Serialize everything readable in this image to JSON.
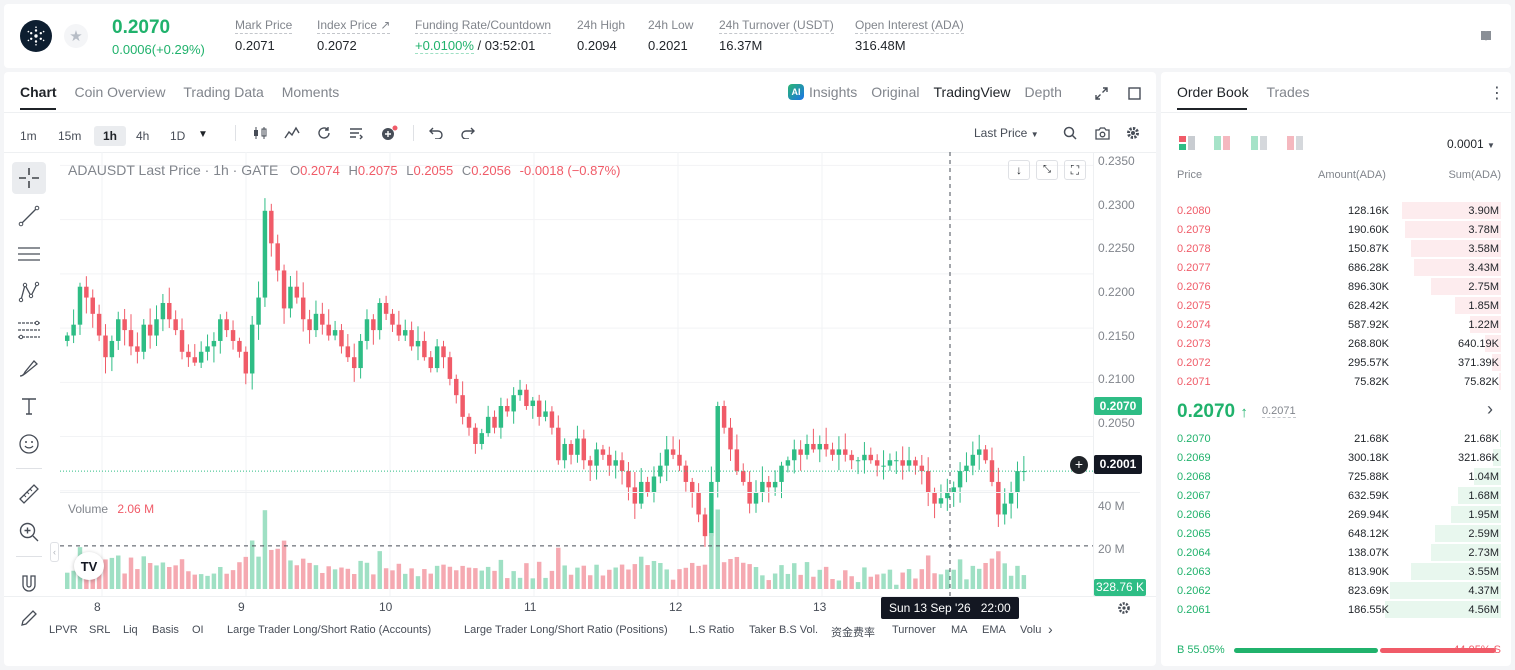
{
  "ticker": {
    "price": "0.2070",
    "change": "0.0006(+0.29%)",
    "stats": [
      {
        "label": "Mark Price",
        "value": "0.2071"
      },
      {
        "label": "Index Price ↗",
        "value": "0.2072"
      },
      {
        "label": "Funding Rate/Countdown",
        "value_green": "+0.0100%",
        "value": " / 03:52:01"
      },
      {
        "label": "24h High",
        "value": "0.2094"
      },
      {
        "label": "24h Low",
        "value": "0.2021"
      },
      {
        "label": "24h Turnover (USDT)",
        "value": "16.37M"
      },
      {
        "label": "Open Interest (ADA)",
        "value": "316.48M"
      }
    ]
  },
  "chart_tabs": [
    "Chart",
    "Coin Overview",
    "Trading Data",
    "Moments"
  ],
  "view_tabs": {
    "insights": "Insights",
    "original": "Original",
    "tradingview": "TradingView",
    "depth": "Depth"
  },
  "timeframes": [
    "1m",
    "15m",
    "1h",
    "4h",
    "1D"
  ],
  "price_type": "Last Price",
  "ohlc": {
    "symbol": "ADAUSDT Last Price · 1h · GATE",
    "o_label": "O",
    "o": "0.2074",
    "h_label": "H",
    "h": "0.2075",
    "l_label": "L",
    "l": "0.2055",
    "c_label": "C",
    "c": "0.2056",
    "chg": "-0.0018 (−0.87%)"
  },
  "volume": {
    "label": "Volume",
    "value": "2.06 M",
    "last_tag": "328.76 K"
  },
  "price_axis": [
    "0.2350",
    "0.2300",
    "0.2250",
    "0.2200",
    "0.2150",
    "0.2100",
    "0.2050"
  ],
  "volume_axis": [
    "40 M",
    "20 M"
  ],
  "current_price_tag": "0.2070",
  "crosshair_price_tag": "0.2001",
  "crosshair_time_tag": "Sun 13 Sep '26   22:00",
  "x_axis": [
    "8",
    "9",
    "10",
    "11",
    "12",
    "13"
  ],
  "indicators": [
    "LPVR",
    "SRL",
    "Liq",
    "Basis",
    "OI",
    "Large Trader Long/Short Ratio (Accounts)",
    "Large Trader Long/Short Ratio (Positions)",
    "L.S Ratio",
    "Taker B.S Vol.",
    "资金费率",
    "Turnover",
    "MA",
    "EMA",
    "Volu"
  ],
  "chart_data": {
    "type": "candlestick",
    "symbol": "ADAUSDT",
    "interval": "1h",
    "ylim": [
      0.2,
      0.2355
    ],
    "x_ticks": [
      "8",
      "9",
      "10",
      "11",
      "12",
      "13"
    ],
    "current_price": 0.207,
    "crosshair_price": 0.2001,
    "crosshair_time": "Sun 13 Sep '26 22:00",
    "series": [
      {
        "name": "ADAUSDT",
        "close": [
          0.2195,
          0.2205,
          0.224,
          0.223,
          0.2215,
          0.2195,
          0.2175,
          0.219,
          0.221,
          0.22,
          0.2185,
          0.218,
          0.2205,
          0.2195,
          0.221,
          0.2225,
          0.221,
          0.22,
          0.218,
          0.2175,
          0.217,
          0.218,
          0.2185,
          0.219,
          0.221,
          0.22,
          0.219,
          0.218,
          0.216,
          0.2205,
          0.223,
          0.231,
          0.228,
          0.2255,
          0.222,
          0.224,
          0.223,
          0.221,
          0.22,
          0.2215,
          0.2205,
          0.2195,
          0.22,
          0.2185,
          0.2175,
          0.2165,
          0.219,
          0.221,
          0.22,
          0.2225,
          0.2215,
          0.2205,
          0.2195,
          0.22,
          0.2185,
          0.219,
          0.2175,
          0.2165,
          0.2185,
          0.2175,
          0.2155,
          0.214,
          0.212,
          0.211,
          0.2095,
          0.2105,
          0.212,
          0.211,
          0.213,
          0.2125,
          0.214,
          0.2145,
          0.213,
          0.2135,
          0.212,
          0.2125,
          0.211,
          0.208,
          0.2095,
          0.2085,
          0.21,
          0.208,
          0.2075,
          0.209,
          0.2085,
          0.2075,
          0.208,
          0.207,
          0.2055,
          0.204,
          0.206,
          0.205,
          0.2065,
          0.2075,
          0.209,
          0.2085,
          0.2075,
          0.206,
          0.205,
          0.203,
          0.201,
          0.206,
          0.213,
          0.211,
          0.209,
          0.207,
          0.206,
          0.204,
          0.205,
          0.206,
          0.2055,
          0.206,
          0.2075,
          0.208,
          0.209,
          0.2085,
          0.2095,
          0.209,
          0.2095,
          0.209,
          0.2085,
          0.209,
          0.2085,
          0.208,
          0.208,
          0.2085,
          0.208,
          0.2075,
          0.2075,
          0.208,
          0.208,
          0.2075,
          0.208,
          0.2075,
          0.207,
          0.205,
          0.204,
          0.2045,
          0.205,
          0.2055,
          0.207,
          0.2075,
          0.2085,
          0.209,
          0.208,
          0.206,
          0.203,
          0.204,
          0.205,
          0.207,
          0.207
        ]
      }
    ]
  },
  "orderbook": {
    "tabs": [
      "Order Book",
      "Trades"
    ],
    "precision": "0.0001",
    "headers": {
      "price": "Price",
      "amount": "Amount(ADA)",
      "sum": "Sum(ADA)"
    },
    "asks": [
      {
        "price": "0.2080",
        "amount": "128.16K",
        "sum": "3.90M",
        "depth": 0.85
      },
      {
        "price": "0.2079",
        "amount": "190.60K",
        "sum": "3.78M",
        "depth": 0.83
      },
      {
        "price": "0.2078",
        "amount": "150.87K",
        "sum": "3.58M",
        "depth": 0.78
      },
      {
        "price": "0.2077",
        "amount": "686.28K",
        "sum": "3.43M",
        "depth": 0.75
      },
      {
        "price": "0.2076",
        "amount": "896.30K",
        "sum": "2.75M",
        "depth": 0.6
      },
      {
        "price": "0.2075",
        "amount": "628.42K",
        "sum": "1.85M",
        "depth": 0.4
      },
      {
        "price": "0.2074",
        "amount": "587.92K",
        "sum": "1.22M",
        "depth": 0.27
      },
      {
        "price": "0.2073",
        "amount": "268.80K",
        "sum": "640.19K",
        "depth": 0.14
      },
      {
        "price": "0.2072",
        "amount": "295.57K",
        "sum": "371.39K",
        "depth": 0.08
      },
      {
        "price": "0.2071",
        "amount": "75.82K",
        "sum": "75.82K",
        "depth": 0.02
      }
    ],
    "last_price": "0.2070",
    "mark_price": "0.2071",
    "bids": [
      {
        "price": "0.2070",
        "amount": "21.68K",
        "sum": "21.68K",
        "depth": 0.01
      },
      {
        "price": "0.2069",
        "amount": "300.18K",
        "sum": "321.86K",
        "depth": 0.07
      },
      {
        "price": "0.2068",
        "amount": "725.88K",
        "sum": "1.04M",
        "depth": 0.23
      },
      {
        "price": "0.2067",
        "amount": "632.59K",
        "sum": "1.68M",
        "depth": 0.37
      },
      {
        "price": "0.2066",
        "amount": "269.94K",
        "sum": "1.95M",
        "depth": 0.43
      },
      {
        "price": "0.2065",
        "amount": "648.12K",
        "sum": "2.59M",
        "depth": 0.57
      },
      {
        "price": "0.2064",
        "amount": "138.07K",
        "sum": "2.73M",
        "depth": 0.6
      },
      {
        "price": "0.2063",
        "amount": "813.90K",
        "sum": "3.55M",
        "depth": 0.78
      },
      {
        "price": "0.2062",
        "amount": "823.69K",
        "sum": "4.37M",
        "depth": 0.96
      },
      {
        "price": "0.2061",
        "amount": "186.55K",
        "sum": "4.56M",
        "depth": 1.0
      }
    ],
    "buy_ratio": "55.05%",
    "sell_ratio": "44.95%",
    "buy_fraction": 0.5505,
    "buy_label": "B",
    "sell_label": "S"
  },
  "colors": {
    "up": "#2ebd85",
    "down": "#f05b68",
    "up_vol": "#9fe0c4",
    "down_vol": "#f5a9b1",
    "accent": "#20b26c"
  }
}
